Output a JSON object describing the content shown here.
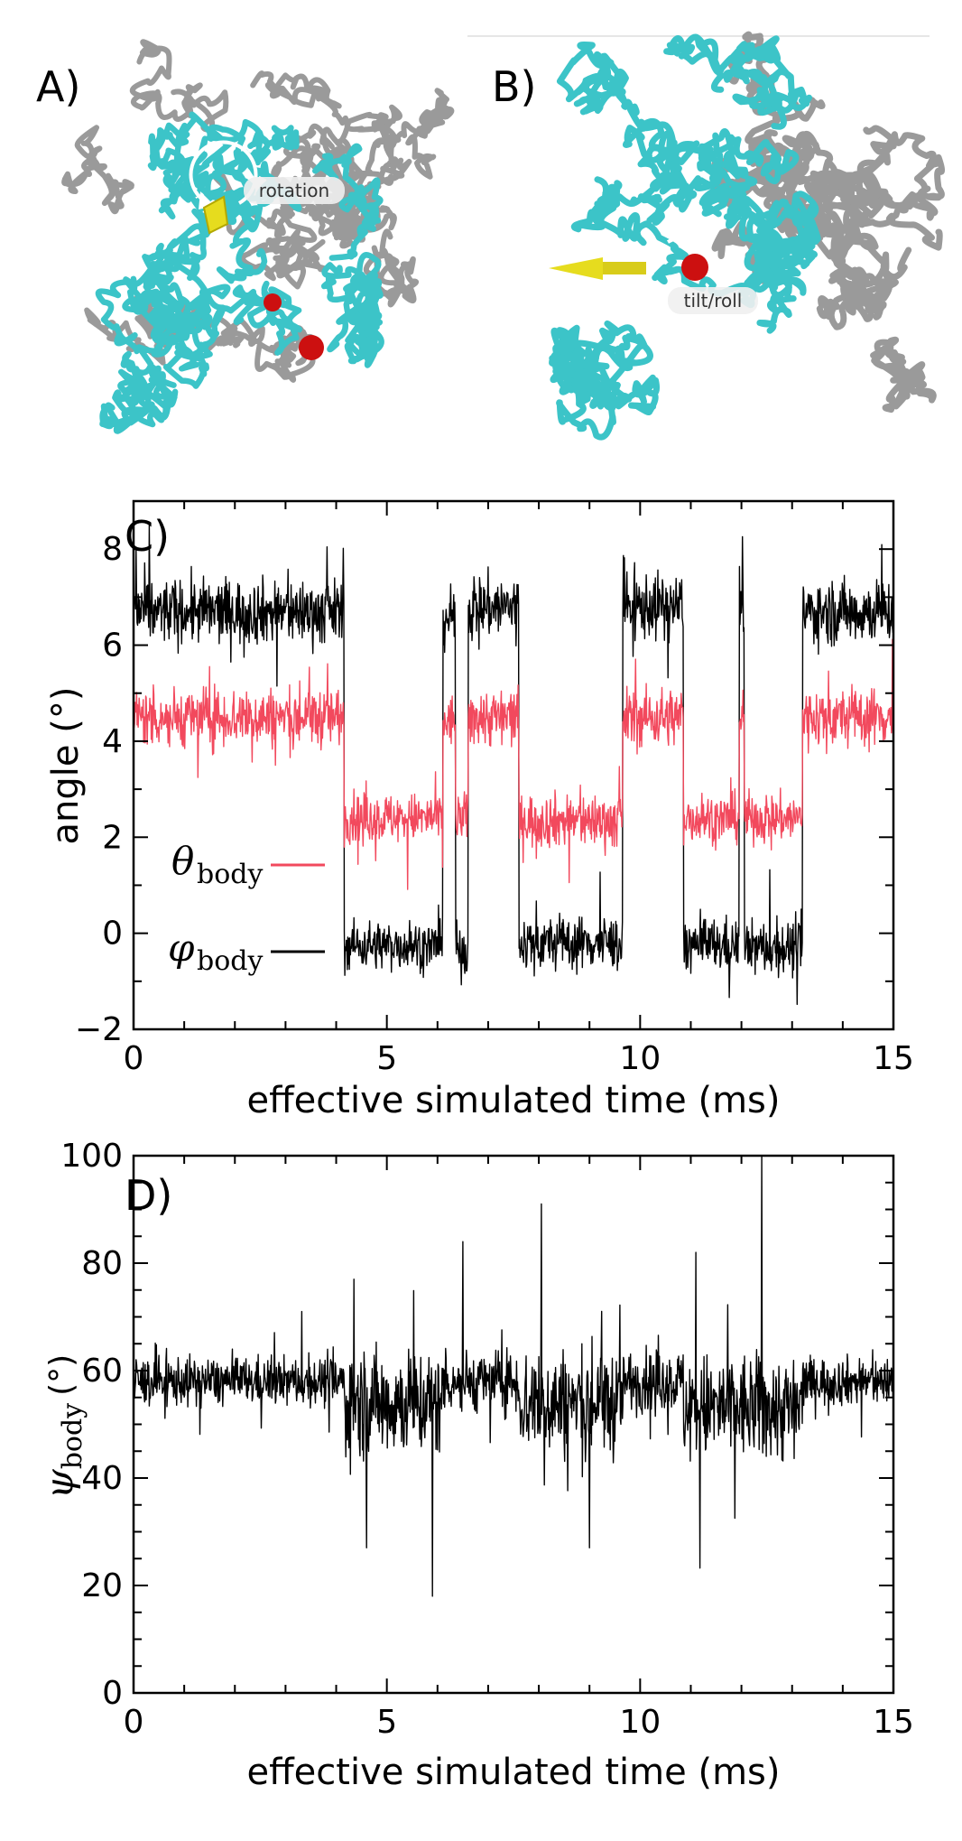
{
  "panels": {
    "a": {
      "letter": "A)",
      "tag": "rotation"
    },
    "b": {
      "letter": "B)",
      "tag": "tilt/roll"
    },
    "c": {
      "letter": "C)"
    },
    "d": {
      "letter": "D)"
    }
  },
  "colors": {
    "theta": "#f2495d",
    "phi": "#000000",
    "psi": "#000000",
    "rna_body": "#3cc4c8",
    "rna_rest": "#9a9a9a",
    "arrow_yellow": "#e6dc1e",
    "arrow_red": "#cc1010"
  },
  "chart_data": [
    {
      "type": "line",
      "panel": "C)",
      "xlabel": "effective simulated time (ms)",
      "ylabel": "angle (°)",
      "xlim": [
        0,
        15
      ],
      "ylim": [
        -2,
        9
      ],
      "xticks": [
        "0",
        "5",
        "10",
        "15"
      ],
      "yticks": [
        "−2",
        "0",
        "2",
        "4",
        "6",
        "8"
      ],
      "legend_position": "center-left",
      "series": [
        {
          "name": "θ_body",
          "legend_symbol": "θ",
          "legend_subscript": "body",
          "color": "#f2495d",
          "levels": [
            {
              "start": 0.0,
              "end": 4.15,
              "mean": 4.5,
              "noise": 0.55
            },
            {
              "start": 4.15,
              "end": 6.1,
              "mean": 2.4,
              "noise": 0.45
            },
            {
              "start": 6.1,
              "end": 6.35,
              "mean": 4.4,
              "noise": 0.5
            },
            {
              "start": 6.35,
              "end": 6.6,
              "mean": 2.4,
              "noise": 0.45
            },
            {
              "start": 6.6,
              "end": 7.6,
              "mean": 4.5,
              "noise": 0.55
            },
            {
              "start": 7.6,
              "end": 9.65,
              "mean": 2.35,
              "noise": 0.5
            },
            {
              "start": 9.65,
              "end": 10.85,
              "mean": 4.5,
              "noise": 0.55
            },
            {
              "start": 10.85,
              "end": 11.95,
              "mean": 2.4,
              "noise": 0.45
            },
            {
              "start": 11.95,
              "end": 12.05,
              "mean": 4.5,
              "noise": 0.5
            },
            {
              "start": 12.05,
              "end": 13.2,
              "mean": 2.4,
              "noise": 0.45
            },
            {
              "start": 13.2,
              "end": 15.0,
              "mean": 4.5,
              "noise": 0.55
            }
          ]
        },
        {
          "name": "φ_body",
          "legend_symbol": "φ",
          "legend_subscript": "body",
          "color": "#000000",
          "levels": [
            {
              "start": 0.0,
              "end": 4.15,
              "mean": 6.7,
              "noise": 0.6
            },
            {
              "start": 4.15,
              "end": 6.1,
              "mean": -0.25,
              "noise": 0.45
            },
            {
              "start": 6.1,
              "end": 6.35,
              "mean": 6.6,
              "noise": 0.6
            },
            {
              "start": 6.35,
              "end": 6.6,
              "mean": -0.4,
              "noise": 0.5
            },
            {
              "start": 6.6,
              "end": 7.6,
              "mean": 6.8,
              "noise": 0.6
            },
            {
              "start": 7.6,
              "end": 9.65,
              "mean": -0.2,
              "noise": 0.5
            },
            {
              "start": 9.65,
              "end": 10.85,
              "mean": 6.8,
              "noise": 0.6
            },
            {
              "start": 10.85,
              "end": 11.95,
              "mean": -0.25,
              "noise": 0.5
            },
            {
              "start": 11.95,
              "end": 12.05,
              "mean": 6.9,
              "noise": 0.6
            },
            {
              "start": 12.05,
              "end": 13.2,
              "mean": -0.3,
              "noise": 0.5
            },
            {
              "start": 13.2,
              "end": 15.0,
              "mean": 6.7,
              "noise": 0.6
            }
          ]
        }
      ]
    },
    {
      "type": "line",
      "panel": "D)",
      "xlabel": "effective simulated time (ms)",
      "ylabel": "ψ_body (°)",
      "ylabel_symbol": "ψ",
      "ylabel_subscript": "body",
      "ylabel_unit": "(°)",
      "xlim": [
        0,
        15
      ],
      "ylim": [
        0,
        100
      ],
      "xticks": [
        "0",
        "5",
        "10",
        "15"
      ],
      "yticks": [
        "0",
        "20",
        "40",
        "60",
        "80",
        "100"
      ],
      "series": [
        {
          "name": "ψ_body",
          "color": "#000000",
          "levels": [
            {
              "start": 0.0,
              "end": 4.15,
              "mean": 58,
              "noise": 4
            },
            {
              "start": 4.15,
              "end": 6.1,
              "mean": 54,
              "noise": 9
            },
            {
              "start": 6.1,
              "end": 7.6,
              "mean": 58,
              "noise": 5
            },
            {
              "start": 7.6,
              "end": 9.65,
              "mean": 54,
              "noise": 9
            },
            {
              "start": 9.65,
              "end": 10.85,
              "mean": 58,
              "noise": 5
            },
            {
              "start": 10.85,
              "end": 13.2,
              "mean": 53,
              "noise": 9
            },
            {
              "start": 13.2,
              "end": 15.0,
              "mean": 58,
              "noise": 4
            }
          ],
          "spikes": [
            {
              "x": 5.9,
              "y": 18
            },
            {
              "x": 4.35,
              "y": 77
            },
            {
              "x": 6.5,
              "y": 84
            },
            {
              "x": 8.05,
              "y": 91
            },
            {
              "x": 11.1,
              "y": 82
            },
            {
              "x": 12.4,
              "y": 100
            },
            {
              "x": 9.0,
              "y": 27
            },
            {
              "x": 4.6,
              "y": 27
            }
          ]
        }
      ]
    }
  ]
}
